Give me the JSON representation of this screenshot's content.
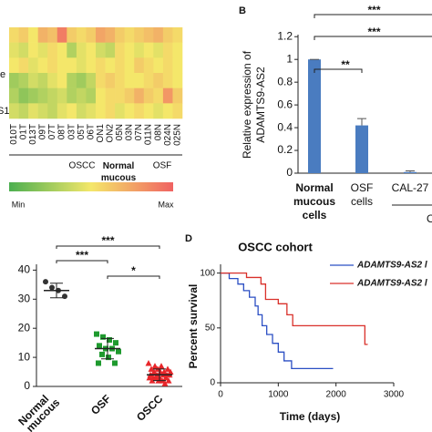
{
  "chart_data": [
    {
      "type": "heatmap",
      "side_labels": [
        "e",
        "S1"
      ],
      "columns": [
        "010T",
        "01T",
        "013T",
        "09T",
        "07T",
        "08T",
        "03T",
        "05T",
        "06T",
        "ON1",
        "ON2",
        "05N",
        "03N",
        "07N",
        "011N",
        "08N",
        "024N",
        "025N"
      ],
      "groups": [
        {
          "label": "OSCC",
          "color": "#000000"
        },
        {
          "label": "Normal mucous",
          "color": "#2e7d32"
        },
        {
          "label": "OSF",
          "color": "#000000"
        }
      ],
      "zlim": [
        0,
        1
      ],
      "zlabels": [
        "Min",
        "Max"
      ],
      "colors": [
        "#4caf50",
        "#f4e76a",
        "#f06262"
      ],
      "values": [
        [
          0.55,
          0.6,
          0.5,
          0.7,
          0.65,
          0.9,
          0.6,
          0.55,
          0.6,
          0.75,
          0.7,
          0.6,
          0.55,
          0.6,
          0.65,
          0.7,
          0.6,
          0.55
        ],
        [
          0.45,
          0.4,
          0.5,
          0.45,
          0.55,
          0.5,
          0.3,
          0.45,
          0.5,
          0.4,
          0.35,
          0.55,
          0.5,
          0.45,
          0.5,
          0.45,
          0.55,
          0.5
        ],
        [
          0.5,
          0.55,
          0.45,
          0.5,
          0.55,
          0.5,
          0.5,
          0.45,
          0.5,
          0.55,
          0.5,
          0.55,
          0.5,
          0.6,
          0.55,
          0.5,
          0.55,
          0.5
        ],
        [
          0.25,
          0.3,
          0.4,
          0.35,
          0.45,
          0.5,
          0.3,
          0.25,
          0.35,
          0.55,
          0.6,
          0.55,
          0.5,
          0.5,
          0.55,
          0.6,
          0.55,
          0.5
        ],
        [
          0.3,
          0.2,
          0.25,
          0.3,
          0.35,
          0.4,
          0.3,
          0.35,
          0.3,
          0.5,
          0.55,
          0.55,
          0.6,
          0.7,
          0.6,
          0.55,
          0.8,
          0.6
        ],
        [
          0.4,
          0.35,
          0.45,
          0.4,
          0.35,
          0.45,
          0.5,
          0.4,
          0.45,
          0.5,
          0.55,
          0.45,
          0.5,
          0.55,
          0.5,
          0.45,
          0.5,
          0.55
        ]
      ]
    },
    {
      "type": "bar",
      "letter": "B",
      "ylabel": [
        "Relative expression of",
        "ADAMTS9-AS2"
      ],
      "categories": [
        [
          "Normal",
          "mucous",
          "cells"
        ],
        [
          "OSF",
          "cells"
        ],
        [
          "CAL-27"
        ]
      ],
      "category_colors": [
        "#2e7d32",
        "#000000",
        "#000000"
      ],
      "group_label": "O",
      "values": [
        1.0,
        0.42,
        0.01
      ],
      "errors": [
        0,
        0.06,
        0.01
      ],
      "color": "#4a7cc0",
      "ylim": [
        0,
        1.25
      ],
      "yticks": [
        0,
        0.2,
        0.4,
        0.6,
        0.8,
        1.0,
        1.2
      ],
      "significance": [
        "**",
        "***",
        "***"
      ]
    },
    {
      "type": "dot",
      "categories": [
        [
          "Normal",
          "mucous"
        ],
        [
          "OSF"
        ],
        [
          "OSCC"
        ]
      ],
      "colors": [
        "#333333",
        "#1e9a2e",
        "#e8262a"
      ],
      "markers": [
        "circle",
        "square",
        "triangle"
      ],
      "values": [
        [
          36,
          34,
          33,
          31
        ],
        [
          18,
          17,
          16,
          15,
          14,
          13,
          13,
          12,
          11,
          10,
          8,
          8
        ],
        [
          8,
          7,
          7,
          6,
          6,
          6,
          5,
          5,
          5,
          5,
          4,
          4,
          4,
          4,
          4,
          3,
          3,
          3,
          3,
          3,
          2,
          2,
          2,
          2,
          1
        ]
      ],
      "means": [
        33,
        13,
        4
      ],
      "errors": [
        2.5,
        3.5,
        2
      ],
      "ylim": [
        0,
        42
      ],
      "yticks": [
        0,
        10,
        20,
        30,
        40
      ],
      "significance": [
        "***",
        "***",
        "*"
      ]
    },
    {
      "type": "line",
      "letter": "D",
      "title": "OSCC cohort",
      "xlabel": "Time (days)",
      "ylabel": "Percent survival",
      "xlim": [
        0,
        3000
      ],
      "xticks": [
        0,
        1000,
        2000,
        3000
      ],
      "ylim": [
        0,
        108
      ],
      "yticks": [
        0,
        50,
        100
      ],
      "series": [
        {
          "name": "ADAMTS9-AS2 l",
          "color": "#2b4fc4",
          "x": [
            0,
            150,
            150,
            300,
            300,
            400,
            400,
            500,
            500,
            600,
            600,
            650,
            650,
            720,
            720,
            800,
            800,
            900,
            900,
            1000,
            1000,
            1100,
            1100,
            1230,
            1230,
            1950
          ],
          "values": [
            100,
            100,
            95,
            95,
            90,
            90,
            84,
            84,
            78,
            78,
            70,
            70,
            62,
            62,
            52,
            52,
            44,
            44,
            36,
            36,
            28,
            28,
            20,
            20,
            13,
            13
          ]
        },
        {
          "name": "ADAMTS9-AS2 l",
          "color": "#d9302a",
          "x": [
            0,
            450,
            450,
            700,
            700,
            780,
            780,
            1000,
            1000,
            1150,
            1150,
            1250,
            1250,
            2500,
            2500,
            2550
          ],
          "values": [
            100,
            100,
            96,
            96,
            90,
            90,
            76,
            76,
            72,
            72,
            62,
            62,
            52,
            52,
            35,
            35
          ]
        }
      ]
    }
  ]
}
